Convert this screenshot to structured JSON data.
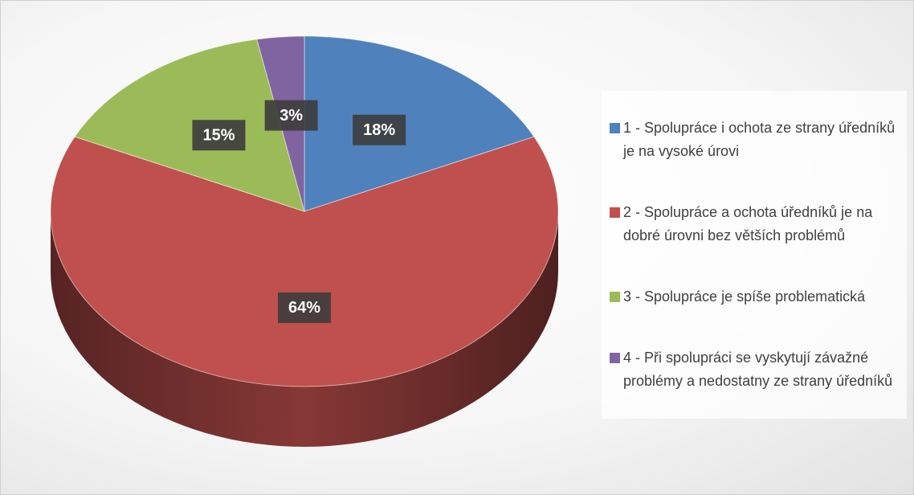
{
  "chart_data": {
    "type": "pie",
    "categories": [
      "1 - Spolupráce i ochota ze strany úředníků je na vysoké úrovi",
      "2 - Spolupráce a ochota úředníků je na dobré úrovni bez větších problémů",
      "3 - Spolupráce je spíše problematická",
      "4 - Při spolupráci se vyskytují závažné problémy a nedostatny ze strany úředníků"
    ],
    "values": [
      18,
      64,
      15,
      3
    ],
    "value_labels": [
      "18%",
      "64%",
      "15%",
      "3%"
    ],
    "colors": [
      "#4f81bd",
      "#c0504d",
      "#9bbb59",
      "#8064a2"
    ],
    "legend": "right"
  }
}
